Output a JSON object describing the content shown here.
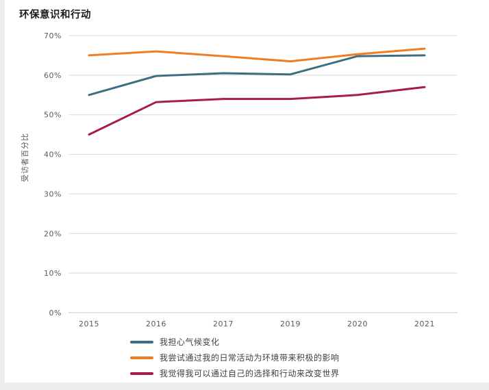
{
  "chart_data": {
    "type": "line",
    "title": "环保意识和行动",
    "xlabel": "",
    "ylabel": "受访者百分比",
    "ylim": [
      0,
      70
    ],
    "y_tick_labels": [
      "0%",
      "10%",
      "20%",
      "30%",
      "40%",
      "50%",
      "60%",
      "70%"
    ],
    "categories": [
      "2015",
      "2016",
      "2017",
      "2019",
      "2020",
      "2021"
    ],
    "grid": true,
    "legend_position": "bottom-left",
    "series": [
      {
        "name": "我担心气候变化",
        "color": "#3c6e82",
        "values": [
          55.0,
          59.8,
          60.5,
          60.2,
          64.8,
          65.0
        ]
      },
      {
        "name": "我尝试通过我的日常活动为环境带来积极的影响",
        "color": "#ef7d22",
        "values": [
          65.0,
          66.0,
          64.8,
          63.5,
          65.3,
          66.7
        ]
      },
      {
        "name": "我觉得我可以通过自己的选择和行动来改变世界",
        "color": "#a81b4d",
        "values": [
          45.0,
          53.2,
          54.0,
          54.0,
          55.0,
          57.0
        ]
      }
    ],
    "style": {
      "gridline_color": "#d8d8d8",
      "baseline_color": "#c4c4c4",
      "tick_label_color": "#5a5a5a",
      "line_width": 3
    }
  }
}
